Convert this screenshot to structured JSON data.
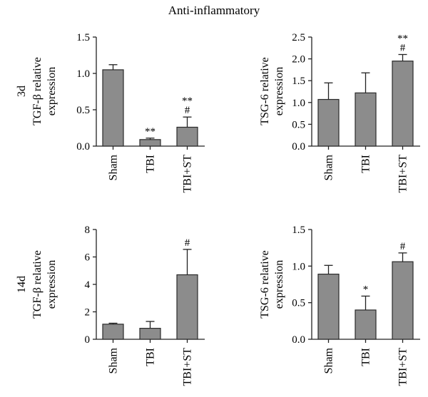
{
  "figure_title": "Anti-inflammatory",
  "chart_data": [
    {
      "type": "bar",
      "row_label": "3d",
      "ylabel": [
        "TGF-β relative",
        "expression"
      ],
      "categories": [
        "Sham",
        "TBI",
        "TBI+ST"
      ],
      "values": [
        1.05,
        0.09,
        0.26
      ],
      "errors": [
        0.07,
        0.02,
        0.14
      ],
      "annotations": [
        [],
        [
          "**"
        ],
        [
          "#",
          "**"
        ]
      ],
      "ylim": [
        0,
        1.5
      ],
      "yticks": [
        "0.0",
        "0.5",
        "1.0",
        "1.5"
      ]
    },
    {
      "type": "bar",
      "row_label": "",
      "ylabel": [
        "TSG-6 relative",
        "expression"
      ],
      "categories": [
        "Sham",
        "TBI",
        "TBI+ST"
      ],
      "values": [
        1.07,
        1.22,
        1.95
      ],
      "errors": [
        0.38,
        0.46,
        0.15
      ],
      "annotations": [
        [],
        [],
        [
          "#",
          "**"
        ]
      ],
      "ylim": [
        0,
        2.5
      ],
      "yticks": [
        "0.0",
        "0.5",
        "1.0",
        "1.5",
        "2.0",
        "2.5"
      ]
    },
    {
      "type": "bar",
      "row_label": "14d",
      "ylabel": [
        "TGF-β relative",
        "expression"
      ],
      "categories": [
        "Sham",
        "TBI",
        "TBI+ST"
      ],
      "values": [
        1.1,
        0.8,
        4.7
      ],
      "errors": [
        0.07,
        0.5,
        1.85
      ],
      "annotations": [
        [],
        [],
        [
          "#"
        ]
      ],
      "ylim": [
        0,
        8
      ],
      "yticks": [
        "0",
        "2",
        "4",
        "6",
        "8"
      ]
    },
    {
      "type": "bar",
      "row_label": "",
      "ylabel": [
        "TSG-6 relative",
        "expression"
      ],
      "categories": [
        "Sham",
        "TBI",
        "TBI+ST"
      ],
      "values": [
        0.89,
        0.4,
        1.06
      ],
      "errors": [
        0.12,
        0.19,
        0.12
      ],
      "annotations": [
        [],
        [
          "*"
        ],
        [
          "#"
        ]
      ],
      "ylim": [
        0,
        1.5
      ],
      "yticks": [
        "0.0",
        "0.5",
        "1.0",
        "1.5"
      ]
    }
  ]
}
